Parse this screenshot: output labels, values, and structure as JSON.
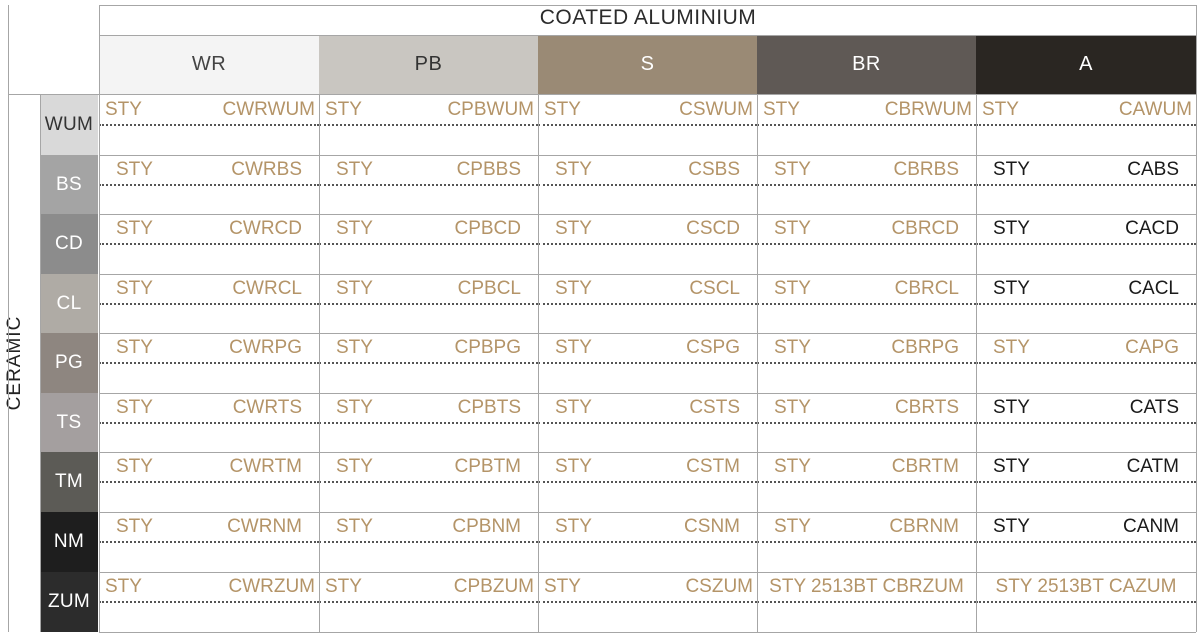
{
  "top_header": "COATED ALUMINIUM",
  "side_header": "CERAMIC",
  "columns": [
    {
      "label": "WR",
      "bg": "#f4f4f4",
      "fg": "#444444"
    },
    {
      "label": "PB",
      "bg": "#c9c6c1",
      "fg": "#333333"
    },
    {
      "label": "S",
      "bg": "#9a8a75",
      "fg": "#ffffff"
    },
    {
      "label": "BR",
      "bg": "#5f5955",
      "fg": "#ffffff"
    },
    {
      "label": "A",
      "bg": "#2a2622",
      "fg": "#ffffff"
    }
  ],
  "rows": [
    {
      "label": "WUM",
      "bg": "#d9d9d9",
      "fg": "#333333"
    },
    {
      "label": "BS",
      "bg": "#a4a4a4",
      "fg": "#ffffff"
    },
    {
      "label": "CD",
      "bg": "#8c8c8c",
      "fg": "#ffffff"
    },
    {
      "label": "CL",
      "bg": "#afaba5",
      "fg": "#ffffff"
    },
    {
      "label": "PG",
      "bg": "#8e8680",
      "fg": "#ffffff"
    },
    {
      "label": "TS",
      "bg": "#a49f9f",
      "fg": "#ffffff"
    },
    {
      "label": "TM",
      "bg": "#5c5b56",
      "fg": "#ffffff"
    },
    {
      "label": "NM",
      "bg": "#1e1e1e",
      "fg": "#ffffff"
    },
    {
      "label": "ZUM",
      "bg": "#2c2c2c",
      "fg": "#ffffff"
    }
  ],
  "colors": {
    "gold": "#b49468",
    "black": "#1a1a1a"
  },
  "cells": [
    [
      {
        "sty": "STY",
        "code": "CWRWUM",
        "color": "gold"
      },
      {
        "sty": "STY",
        "code": "CPBWUM",
        "color": "gold"
      },
      {
        "sty": "STY",
        "code": "CSWUM",
        "color": "gold"
      },
      {
        "sty": "STY",
        "code": "CBRWUM",
        "color": "gold"
      },
      {
        "sty": "STY",
        "code": "CAWUM",
        "color": "gold"
      }
    ],
    [
      {
        "sty": "STY",
        "code": "CWRBS",
        "color": "gold"
      },
      {
        "sty": "STY",
        "code": "CPBBS",
        "color": "gold"
      },
      {
        "sty": "STY",
        "code": "CSBS",
        "color": "gold"
      },
      {
        "sty": "STY",
        "code": "CBRBS",
        "color": "gold"
      },
      {
        "sty": "STY",
        "code": "CABS",
        "color": "black"
      }
    ],
    [
      {
        "sty": "STY",
        "code": "CWRCD",
        "color": "gold"
      },
      {
        "sty": "STY",
        "code": "CPBCD",
        "color": "gold"
      },
      {
        "sty": "STY",
        "code": "CSCD",
        "color": "gold"
      },
      {
        "sty": "STY",
        "code": "CBRCD",
        "color": "gold"
      },
      {
        "sty": "STY",
        "code": "CACD",
        "color": "black"
      }
    ],
    [
      {
        "sty": "STY",
        "code": "CWRCL",
        "color": "gold"
      },
      {
        "sty": "STY",
        "code": "CPBCL",
        "color": "gold"
      },
      {
        "sty": "STY",
        "code": "CSCL",
        "color": "gold"
      },
      {
        "sty": "STY",
        "code": "CBRCL",
        "color": "gold"
      },
      {
        "sty": "STY",
        "code": "CACL",
        "color": "black"
      }
    ],
    [
      {
        "sty": "STY",
        "code": "CWRPG",
        "color": "gold"
      },
      {
        "sty": "STY",
        "code": "CPBPG",
        "color": "gold"
      },
      {
        "sty": "STY",
        "code": "CSPG",
        "color": "gold"
      },
      {
        "sty": "STY",
        "code": "CBRPG",
        "color": "gold"
      },
      {
        "sty": "STY",
        "code": "CAPG",
        "color": "gold"
      }
    ],
    [
      {
        "sty": "STY",
        "code": "CWRTS",
        "color": "gold"
      },
      {
        "sty": "STY",
        "code": "CPBTS",
        "color": "gold"
      },
      {
        "sty": "STY",
        "code": "CSTS",
        "color": "gold"
      },
      {
        "sty": "STY",
        "code": "CBRTS",
        "color": "gold"
      },
      {
        "sty": "STY",
        "code": "CATS",
        "color": "black"
      }
    ],
    [
      {
        "sty": "STY",
        "code": "CWRTM",
        "color": "gold"
      },
      {
        "sty": "STY",
        "code": "CPBTM",
        "color": "gold"
      },
      {
        "sty": "STY",
        "code": "CSTM",
        "color": "gold"
      },
      {
        "sty": "STY",
        "code": "CBRTM",
        "color": "gold"
      },
      {
        "sty": "STY",
        "code": "CATM",
        "color": "black"
      }
    ],
    [
      {
        "sty": "STY",
        "code": "CWRNM",
        "color": "gold"
      },
      {
        "sty": "STY",
        "code": "CPBNM",
        "color": "gold"
      },
      {
        "sty": "STY",
        "code": "CSNM",
        "color": "gold"
      },
      {
        "sty": "STY",
        "code": "CBRNM",
        "color": "gold"
      },
      {
        "sty": "STY",
        "code": "CANM",
        "color": "black"
      }
    ],
    [
      {
        "sty": "STY",
        "code": "CWRZUM",
        "color": "gold"
      },
      {
        "sty": "STY",
        "code": "CPBZUM",
        "color": "gold"
      },
      {
        "sty": "STY",
        "code": "CSZUM",
        "color": "gold"
      },
      {
        "full": "STY 2513BT CBRZUM",
        "color": "gold"
      },
      {
        "full": "STY 2513BT CAZUM",
        "color": "gold"
      }
    ]
  ]
}
